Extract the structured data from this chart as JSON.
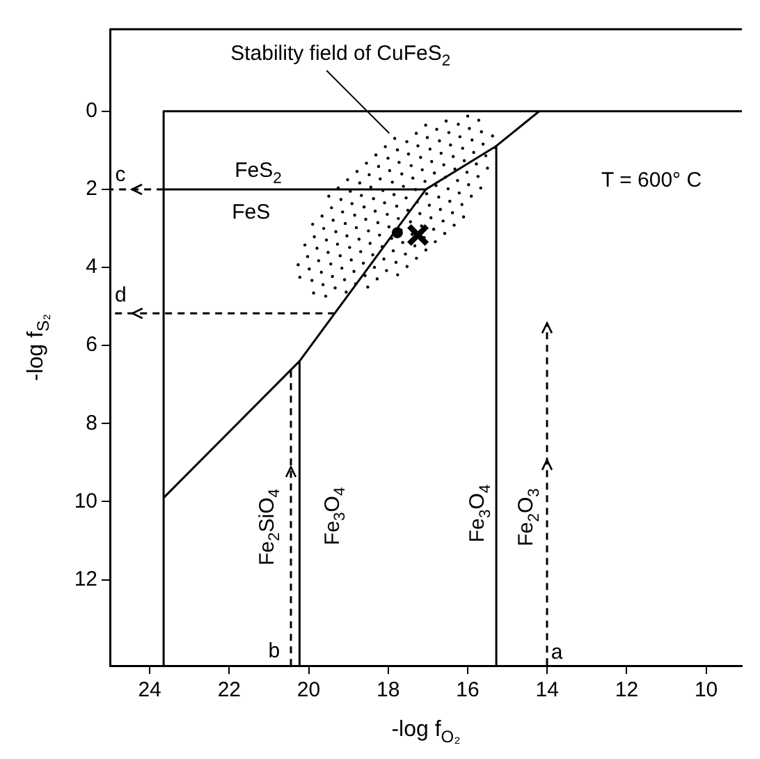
{
  "chart_data": {
    "type": "line",
    "xlabel": "-log f$_{O₂}$",
    "ylabel": "-log f$_{S₂}$",
    "xlim": [
      25,
      9.1
    ],
    "ylim": [
      14.2,
      -2.1
    ],
    "xticks": [
      24,
      22,
      20,
      18,
      16,
      14,
      12,
      10
    ],
    "yticks": [
      0,
      2,
      4,
      6,
      8,
      10,
      12
    ],
    "grid": false,
    "legend": false,
    "series": [
      {
        "color": "#000000",
        "line_style": "solid",
        "x": [
          23.65,
          23.65,
          9.1
        ],
        "values": [
          14.2,
          0,
          0
        ]
      },
      {
        "color": "#000000",
        "line_style": "solid",
        "x": [
          23.65,
          17.05,
          15.28,
          14.2
        ],
        "values": [
          2,
          2,
          0.89,
          0
        ]
      },
      {
        "color": "#000000",
        "line_style": "solid",
        "x": [
          15.28,
          15.28
        ],
        "values": [
          0.89,
          14.2
        ]
      },
      {
        "color": "#000000",
        "line_style": "solid",
        "x": [
          17.05,
          20.23,
          23.65
        ],
        "values": [
          2,
          6.4,
          9.9
        ]
      },
      {
        "color": "#000000",
        "line_style": "solid",
        "x": [
          20.23,
          20.23
        ],
        "values": [
          6.4,
          14.2
        ]
      },
      {
        "type": "scatter",
        "color": "#000000",
        "marker": "cross",
        "x": [
          17.25
        ],
        "values": [
          3.17
        ]
      },
      {
        "type": "scatter",
        "color": "#000000",
        "marker": "circle",
        "x": [
          17.77
        ],
        "values": [
          3.11
        ]
      }
    ],
    "annotations": [
      "Stability field of CuFeS$_{2}$",
      "FeS$_{2}$",
      "FeS",
      "T = 600° C",
      {
        "text": "c",
        "x": 23.65,
        "y": 2
      },
      {
        "text": "d",
        "x": 19.34,
        "y": 5.16
      },
      "b",
      "a",
      "Fe$_{2}$SiO$_{4}$",
      "Fe$_{3}$O$_{4}$",
      "Fe$_{3}$O$_{4}$",
      "Fe$_{2}$O$_{3}$"
    ]
  }
}
